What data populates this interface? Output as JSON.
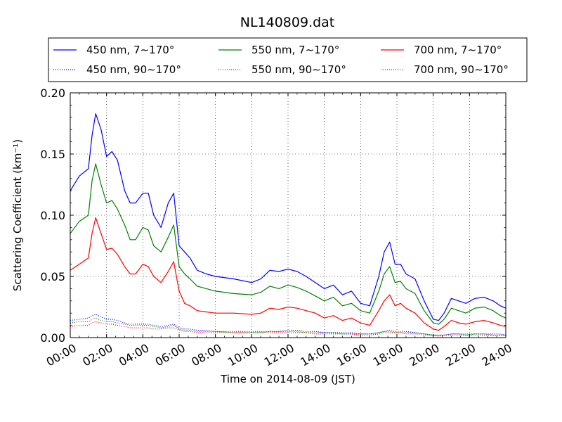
{
  "chart_data": {
    "type": "line",
    "title": "NL140809.dat",
    "xlabel": "Time on 2014-08-09 (JST)",
    "ylabel": "Scattering Coefficient (km⁻¹)",
    "xlim": [
      0,
      24
    ],
    "ylim": [
      0,
      0.2
    ],
    "x_unit": "hours",
    "xticks": [
      "00:00",
      "02:00",
      "04:00",
      "06:00",
      "08:00",
      "10:00",
      "12:00",
      "14:00",
      "16:00",
      "18:00",
      "20:00",
      "22:00",
      "24:00"
    ],
    "yticks": [
      "0.00",
      "0.05",
      "0.10",
      "0.15",
      "0.20"
    ],
    "grid": true,
    "legend_position": "top",
    "x": [
      0,
      0.5,
      1,
      1.2,
      1.4,
      1.7,
      2,
      2.3,
      2.6,
      3,
      3.3,
      3.6,
      4,
      4.3,
      4.6,
      5,
      5.4,
      5.7,
      6,
      6.3,
      6.6,
      7,
      7.5,
      8,
      9,
      10,
      10.5,
      11,
      11.5,
      12,
      12.5,
      13,
      13.5,
      14,
      14.5,
      15,
      15.5,
      16,
      16.5,
      17,
      17.3,
      17.6,
      17.9,
      18.2,
      18.5,
      19,
      19.5,
      20,
      20.3,
      20.6,
      21,
      21.4,
      21.8,
      22.3,
      22.8,
      23.3,
      23.7,
      24
    ],
    "series": [
      {
        "name": "450 nm, 7∼170°",
        "color": "#0000ff",
        "style": "solid",
        "values": [
          0.12,
          0.132,
          0.138,
          0.165,
          0.183,
          0.17,
          0.148,
          0.152,
          0.145,
          0.12,
          0.11,
          0.11,
          0.118,
          0.118,
          0.1,
          0.09,
          0.11,
          0.118,
          0.075,
          0.07,
          0.065,
          0.055,
          0.052,
          0.05,
          0.048,
          0.045,
          0.048,
          0.055,
          0.054,
          0.056,
          0.054,
          0.05,
          0.045,
          0.04,
          0.043,
          0.035,
          0.038,
          0.028,
          0.026,
          0.05,
          0.07,
          0.078,
          0.06,
          0.06,
          0.052,
          0.048,
          0.03,
          0.015,
          0.014,
          0.02,
          0.032,
          0.03,
          0.028,
          0.032,
          0.033,
          0.03,
          0.026,
          0.024
        ]
      },
      {
        "name": "550 nm, 7∼170°",
        "color": "#008000",
        "style": "solid",
        "values": [
          0.085,
          0.095,
          0.1,
          0.128,
          0.142,
          0.125,
          0.11,
          0.112,
          0.105,
          0.092,
          0.08,
          0.08,
          0.09,
          0.088,
          0.075,
          0.07,
          0.082,
          0.092,
          0.058,
          0.052,
          0.048,
          0.042,
          0.04,
          0.038,
          0.036,
          0.035,
          0.037,
          0.042,
          0.04,
          0.043,
          0.041,
          0.038,
          0.034,
          0.03,
          0.033,
          0.026,
          0.028,
          0.022,
          0.02,
          0.038,
          0.052,
          0.058,
          0.045,
          0.046,
          0.04,
          0.036,
          0.022,
          0.012,
          0.011,
          0.015,
          0.024,
          0.022,
          0.02,
          0.024,
          0.025,
          0.022,
          0.018,
          0.016
        ]
      },
      {
        "name": "700 nm, 7∼170°",
        "color": "#ff0000",
        "style": "solid",
        "values": [
          0.055,
          0.06,
          0.065,
          0.085,
          0.098,
          0.085,
          0.072,
          0.073,
          0.068,
          0.058,
          0.052,
          0.052,
          0.06,
          0.058,
          0.05,
          0.045,
          0.054,
          0.062,
          0.038,
          0.028,
          0.026,
          0.022,
          0.021,
          0.02,
          0.02,
          0.019,
          0.02,
          0.024,
          0.023,
          0.025,
          0.024,
          0.022,
          0.02,
          0.016,
          0.018,
          0.014,
          0.016,
          0.012,
          0.01,
          0.022,
          0.03,
          0.035,
          0.026,
          0.028,
          0.024,
          0.02,
          0.012,
          0.007,
          0.006,
          0.009,
          0.014,
          0.012,
          0.011,
          0.013,
          0.014,
          0.012,
          0.01,
          0.009
        ]
      },
      {
        "name": "450 nm, 90∼170°",
        "color": "#0000ff",
        "style": "dotted",
        "values": [
          0.014,
          0.015,
          0.016,
          0.018,
          0.019,
          0.017,
          0.015,
          0.015,
          0.014,
          0.012,
          0.011,
          0.011,
          0.011,
          0.011,
          0.01,
          0.009,
          0.01,
          0.011,
          0.008,
          0.007,
          0.007,
          0.006,
          0.006,
          0.005,
          0.005,
          0.005,
          0.005,
          0.005,
          0.005,
          0.006,
          0.006,
          0.005,
          0.005,
          0.004,
          0.004,
          0.004,
          0.004,
          0.003,
          0.003,
          0.004,
          0.005,
          0.006,
          0.005,
          0.005,
          0.005,
          0.004,
          0.003,
          0.002,
          0.002,
          0.002,
          0.003,
          0.003,
          0.003,
          0.003,
          0.003,
          0.003,
          0.003,
          0.002
        ]
      },
      {
        "name": "550 nm, 90∼170°",
        "color": "#008000",
        "style": "dotted",
        "values": [
          0.012,
          0.013,
          0.013,
          0.015,
          0.016,
          0.014,
          0.013,
          0.013,
          0.012,
          0.011,
          0.01,
          0.01,
          0.01,
          0.01,
          0.009,
          0.008,
          0.009,
          0.01,
          0.007,
          0.006,
          0.006,
          0.005,
          0.005,
          0.005,
          0.004,
          0.004,
          0.004,
          0.005,
          0.005,
          0.005,
          0.005,
          0.004,
          0.004,
          0.004,
          0.004,
          0.003,
          0.003,
          0.003,
          0.003,
          0.004,
          0.005,
          0.005,
          0.004,
          0.004,
          0.004,
          0.004,
          0.003,
          0.002,
          0.002,
          0.002,
          0.003,
          0.003,
          0.002,
          0.003,
          0.003,
          0.002,
          0.002,
          0.002
        ]
      },
      {
        "name": "700 nm, 90∼170°",
        "color": "#ff0000",
        "style": "dotted",
        "values": [
          0.009,
          0.01,
          0.01,
          0.012,
          0.013,
          0.012,
          0.011,
          0.011,
          0.01,
          0.009,
          0.008,
          0.008,
          0.008,
          0.008,
          0.007,
          0.007,
          0.008,
          0.008,
          0.006,
          0.005,
          0.005,
          0.004,
          0.004,
          0.004,
          0.004,
          0.004,
          0.004,
          0.004,
          0.004,
          0.004,
          0.004,
          0.004,
          0.003,
          0.003,
          0.003,
          0.003,
          0.003,
          0.002,
          0.002,
          0.003,
          0.004,
          0.004,
          0.004,
          0.004,
          0.003,
          0.003,
          0.002,
          0.002,
          0.001,
          0.002,
          0.002,
          0.002,
          0.002,
          0.002,
          0.002,
          0.002,
          0.002,
          0.002
        ]
      }
    ]
  }
}
